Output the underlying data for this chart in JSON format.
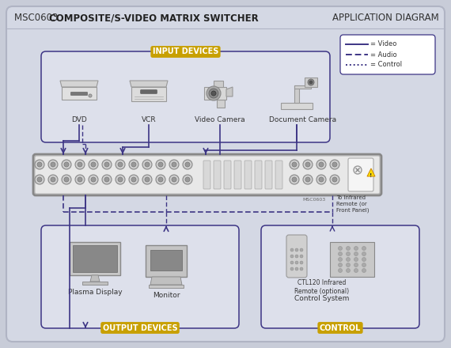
{
  "title_normal": "MSC0603 ",
  "title_bold": "COMPOSITE/S-VIDEO MATRIX SWITCHER",
  "title_right": "APPLICATION DIAGRAM",
  "outer_bg": "#c8ccd8",
  "inner_bg": "#d4d8e4",
  "panel_bg": "#dde0eb",
  "white": "#ffffff",
  "purple": "#3d3585",
  "gold": "#c8a000",
  "gray_dark": "#444444",
  "gray_med": "#888888",
  "gray_light": "#cccccc",
  "gray_lighter": "#e0e0e0",
  "input_label": "INPUT DEVICES",
  "output_label": "OUTPUT DEVICES",
  "control_label": "CONTROL",
  "input_devices": [
    "DVD",
    "VCR",
    "Video Camera",
    "Document Camera"
  ],
  "output_devices": [
    "Plasma Display",
    "Monitor"
  ],
  "control_sub": "CTL120 Infrared\nRemote (optional)",
  "control_device": "Control System",
  "to_infrared": "To Infrared\nRemote (or\nFront Panel)",
  "legend": [
    "= Video",
    "= Audio",
    "= Control"
  ],
  "fig_w": 5.7,
  "fig_h": 4.4,
  "dpi": 100
}
